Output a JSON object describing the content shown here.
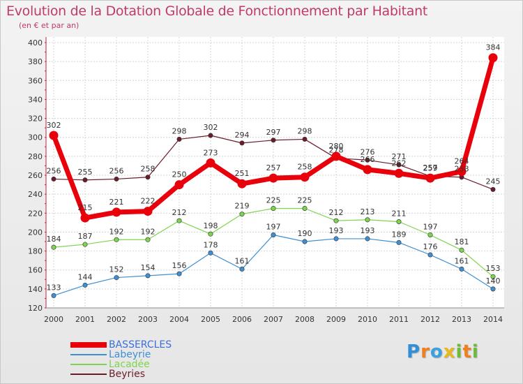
{
  "title": "Evolution de la Dotation Globale de Fonctionnement par Habitant",
  "subtitle": "(en € et par an)",
  "logo": {
    "letters": [
      "P",
      "r",
      "o",
      "x",
      "i",
      "t",
      "i"
    ],
    "colors": [
      "#2f8fd8",
      "#f07f1f",
      "#3aa0e0",
      "#e8b820",
      "#6dbb3a",
      "#f07f1f",
      "#6dbb3a"
    ]
  },
  "chart_data": {
    "type": "line",
    "title": "Evolution de la Dotation Globale de Fonctionnement par Habitant",
    "subtitle": "(en € et par an)",
    "x": [
      "2000",
      "2001",
      "2002",
      "2003",
      "2004",
      "2005",
      "2006",
      "2007",
      "2008",
      "2009",
      "2010",
      "2011",
      "2012",
      "2013",
      "2014"
    ],
    "ylim": [
      120,
      400
    ],
    "yticks": [
      120,
      140,
      160,
      180,
      200,
      220,
      240,
      260,
      280,
      300,
      320,
      340,
      360,
      380,
      400
    ],
    "grid": true,
    "legend_position": "bottom-left",
    "series": [
      {
        "name": "BASSERCLES",
        "color": "#e8000b",
        "highlight": true,
        "labels": [
          "302",
          "215",
          "221",
          "222",
          "250",
          "273",
          "251",
          "257",
          "258",
          "280",
          "266",
          "262",
          "257",
          "264",
          "384"
        ],
        "values": [
          302,
          215,
          221,
          222,
          250,
          273,
          251,
          257,
          258,
          280,
          266,
          262,
          257,
          264,
          384
        ]
      },
      {
        "name": "Labeyrie",
        "color": "#3f8fd2",
        "labels": [
          "133",
          "144",
          "152",
          "154",
          "156",
          "178",
          "161",
          "197",
          "190",
          "193",
          "193",
          "189",
          "176",
          "161",
          "140"
        ],
        "values": [
          133,
          144,
          152,
          154,
          156,
          178,
          161,
          197,
          190,
          193,
          193,
          189,
          176,
          161,
          140
        ]
      },
      {
        "name": "Lacadée",
        "color": "#7ed34f",
        "labels": [
          "184",
          "187",
          "192",
          "192",
          "212",
          "198",
          "219",
          "225",
          "225",
          "212",
          "213",
          "211",
          "197",
          "181",
          "153"
        ],
        "values": [
          184,
          187,
          192,
          192,
          212,
          198,
          219,
          225,
          225,
          212,
          213,
          211,
          197,
          181,
          153
        ]
      },
      {
        "name": "Beyries",
        "color": "#6b1c2a",
        "labels": [
          "256",
          "255",
          "256",
          "258",
          "298",
          "302",
          "294",
          "297",
          "298",
          "278",
          "276",
          "271",
          "259",
          "258",
          "245"
        ],
        "values": [
          256,
          255,
          256,
          258,
          298,
          302,
          294,
          297,
          298,
          278,
          276,
          271,
          259,
          258,
          245
        ]
      }
    ]
  }
}
